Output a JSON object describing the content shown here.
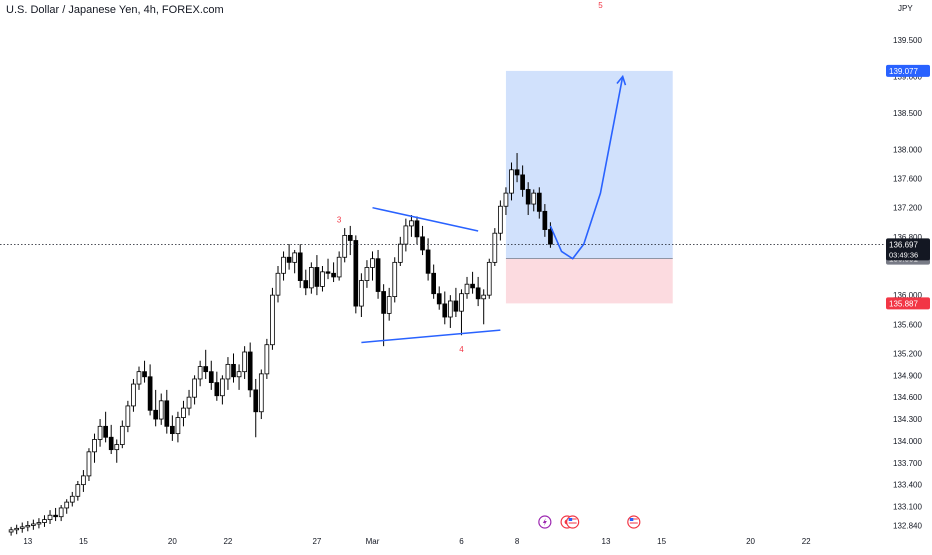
{
  "header": {
    "title": "U.S. Dollar / Japanese Yen, 4h, FOREX.com"
  },
  "currency": "JPY",
  "colors": {
    "up_candle": "#ffffff",
    "down_candle": "#000000",
    "candle_outline": "#000000",
    "target_zone": "#c9dcfb",
    "stop_zone": "#fbd5da",
    "drawing_blue": "#2962ff",
    "wave_label_red": "#f23645",
    "price_tag_dark": "#131722",
    "price_tag_blue": "#2962ff",
    "price_tag_red": "#f23645",
    "price_tag_gray": "#787b86"
  },
  "chart_data": {
    "type": "candlestick",
    "title": "U.S. Dollar / Japanese Yen, 4h, FOREX.com",
    "symbol": "USDJPY",
    "timeframe": "4h",
    "source": "FOREX.com",
    "ylim": [
      132.75,
      140.05
    ],
    "xlim": [
      -2,
      157
    ],
    "x_ticks": [
      {
        "label": "13",
        "bar": 3
      },
      {
        "label": "15",
        "bar": 13
      },
      {
        "label": "20",
        "bar": 29
      },
      {
        "label": "22",
        "bar": 39
      },
      {
        "label": "27",
        "bar": 55
      },
      {
        "label": "Mar",
        "bar": 65
      },
      {
        "label": "6",
        "bar": 81
      },
      {
        "label": "8",
        "bar": 91
      },
      {
        "label": "13",
        "bar": 107
      },
      {
        "label": "15",
        "bar": 117
      },
      {
        "label": "20",
        "bar": 133
      },
      {
        "label": "22",
        "bar": 143
      }
    ],
    "y_ticks": [
      "139.500",
      "139.000",
      "138.500",
      "138.000",
      "137.600",
      "137.200",
      "136.800",
      "136.000",
      "135.600",
      "135.200",
      "134.900",
      "134.600",
      "134.300",
      "134.000",
      "133.700",
      "133.400",
      "133.100",
      "132.840"
    ],
    "candles": [
      [
        0,
        132.75,
        132.82,
        132.7,
        132.78
      ],
      [
        1,
        132.78,
        132.85,
        132.72,
        132.8
      ],
      [
        2,
        132.8,
        132.88,
        132.74,
        132.82
      ],
      [
        3,
        132.82,
        132.9,
        132.76,
        132.84
      ],
      [
        4,
        132.84,
        132.92,
        132.78,
        132.86
      ],
      [
        5,
        132.86,
        132.94,
        132.8,
        132.88
      ],
      [
        6,
        132.88,
        132.98,
        132.82,
        132.92
      ],
      [
        7,
        132.92,
        133.05,
        132.86,
        132.98
      ],
      [
        8,
        132.98,
        133.08,
        132.9,
        132.96
      ],
      [
        9,
        132.96,
        133.12,
        132.9,
        133.08
      ],
      [
        10,
        133.08,
        133.2,
        133.0,
        133.16
      ],
      [
        11,
        133.16,
        133.3,
        133.1,
        133.24
      ],
      [
        12,
        133.24,
        133.45,
        133.18,
        133.4
      ],
      [
        13,
        133.4,
        133.6,
        133.3,
        133.52
      ],
      [
        14,
        133.52,
        133.9,
        133.45,
        133.85
      ],
      [
        15,
        133.85,
        134.1,
        133.7,
        134.02
      ],
      [
        16,
        134.02,
        134.3,
        133.92,
        134.2
      ],
      [
        17,
        134.2,
        134.4,
        133.98,
        134.05
      ],
      [
        18,
        134.05,
        134.22,
        133.82,
        133.88
      ],
      [
        19,
        133.88,
        134.02,
        133.7,
        133.95
      ],
      [
        20,
        133.95,
        134.28,
        133.9,
        134.2
      ],
      [
        21,
        134.2,
        134.55,
        134.12,
        134.48
      ],
      [
        22,
        134.48,
        134.85,
        134.4,
        134.78
      ],
      [
        23,
        134.78,
        135.02,
        134.7,
        134.95
      ],
      [
        24,
        134.95,
        135.1,
        134.8,
        134.88
      ],
      [
        25,
        134.88,
        135.05,
        134.35,
        134.42
      ],
      [
        26,
        134.42,
        134.7,
        134.2,
        134.3
      ],
      [
        27,
        134.3,
        134.65,
        134.22,
        134.55
      ],
      [
        28,
        134.55,
        134.7,
        134.1,
        134.2
      ],
      [
        29,
        134.2,
        134.35,
        134.0,
        134.1
      ],
      [
        30,
        134.1,
        134.4,
        133.98,
        134.32
      ],
      [
        31,
        134.32,
        134.55,
        134.2,
        134.45
      ],
      [
        32,
        134.45,
        134.7,
        134.35,
        134.6
      ],
      [
        33,
        134.6,
        134.9,
        134.5,
        134.85
      ],
      [
        34,
        134.85,
        135.1,
        134.75,
        135.02
      ],
      [
        35,
        135.02,
        135.25,
        134.85,
        134.95
      ],
      [
        36,
        134.95,
        135.1,
        134.7,
        134.8
      ],
      [
        37,
        134.8,
        134.95,
        134.55,
        134.62
      ],
      [
        38,
        134.62,
        134.9,
        134.5,
        134.85
      ],
      [
        39,
        134.85,
        135.15,
        134.7,
        135.05
      ],
      [
        40,
        135.05,
        135.2,
        134.8,
        134.88
      ],
      [
        41,
        134.88,
        135.05,
        134.7,
        134.95
      ],
      [
        42,
        134.95,
        135.3,
        134.85,
        135.22
      ],
      [
        43,
        135.22,
        135.35,
        134.6,
        134.7
      ],
      [
        44,
        134.7,
        134.85,
        134.05,
        134.4
      ],
      [
        45,
        134.4,
        134.98,
        134.3,
        134.92
      ],
      [
        46,
        134.92,
        135.4,
        134.85,
        135.32
      ],
      [
        47,
        135.32,
        136.1,
        135.25,
        136.0
      ],
      [
        48,
        136.0,
        136.4,
        135.9,
        136.3
      ],
      [
        49,
        136.3,
        136.6,
        136.2,
        136.52
      ],
      [
        50,
        136.52,
        136.7,
        136.35,
        136.45
      ],
      [
        51,
        136.45,
        136.62,
        136.3,
        136.58
      ],
      [
        52,
        136.58,
        136.7,
        136.1,
        136.2
      ],
      [
        53,
        136.2,
        136.35,
        136.0,
        136.1
      ],
      [
        54,
        136.1,
        136.45,
        136.02,
        136.38
      ],
      [
        55,
        136.38,
        136.55,
        136.0,
        136.12
      ],
      [
        56,
        136.12,
        136.4,
        136.05,
        136.32
      ],
      [
        57,
        136.32,
        136.5,
        136.22,
        136.3
      ],
      [
        58,
        136.3,
        136.45,
        136.18,
        136.25
      ],
      [
        59,
        136.25,
        136.6,
        136.2,
        136.52
      ],
      [
        60,
        136.52,
        136.92,
        136.45,
        136.82
      ],
      [
        61,
        136.82,
        136.95,
        136.55,
        136.75
      ],
      [
        62,
        136.75,
        136.82,
        135.75,
        135.85
      ],
      [
        63,
        135.85,
        136.3,
        135.7,
        136.2
      ],
      [
        64,
        136.2,
        136.48,
        136.1,
        136.38
      ],
      [
        65,
        136.38,
        136.6,
        136.2,
        136.5
      ],
      [
        66,
        136.5,
        136.62,
        135.95,
        136.05
      ],
      [
        67,
        136.05,
        136.15,
        135.3,
        135.75
      ],
      [
        68,
        135.75,
        136.1,
        135.65,
        135.98
      ],
      [
        69,
        135.98,
        136.52,
        135.9,
        136.45
      ],
      [
        70,
        136.45,
        136.8,
        136.4,
        136.7
      ],
      [
        71,
        136.7,
        137.05,
        136.6,
        136.95
      ],
      [
        72,
        136.95,
        137.1,
        136.8,
        137.02
      ],
      [
        73,
        137.02,
        137.08,
        136.7,
        136.8
      ],
      [
        74,
        136.8,
        136.95,
        136.55,
        136.62
      ],
      [
        75,
        136.62,
        136.78,
        136.2,
        136.3
      ],
      [
        76,
        136.3,
        136.42,
        135.95,
        136.02
      ],
      [
        77,
        136.02,
        136.12,
        135.8,
        135.88
      ],
      [
        78,
        135.88,
        136.05,
        135.6,
        135.7
      ],
      [
        79,
        135.7,
        136.0,
        135.55,
        135.92
      ],
      [
        80,
        135.92,
        136.1,
        135.7,
        135.78
      ],
      [
        81,
        135.78,
        136.08,
        135.45,
        136.02
      ],
      [
        82,
        136.02,
        136.25,
        135.95,
        136.15
      ],
      [
        83,
        136.15,
        136.32,
        136.02,
        136.1
      ],
      [
        84,
        136.1,
        136.25,
        135.85,
        135.95
      ],
      [
        85,
        135.95,
        136.08,
        135.6,
        136.0
      ],
      [
        86,
        136.0,
        136.5,
        135.95,
        136.45
      ],
      [
        87,
        136.45,
        136.92,
        136.4,
        136.85
      ],
      [
        88,
        136.85,
        137.3,
        136.75,
        137.22
      ],
      [
        89,
        137.22,
        137.48,
        137.1,
        137.4
      ],
      [
        90,
        137.4,
        137.82,
        137.3,
        137.72
      ],
      [
        91,
        137.72,
        137.95,
        137.55,
        137.65
      ],
      [
        92,
        137.65,
        137.78,
        137.35,
        137.45
      ],
      [
        93,
        137.45,
        137.55,
        137.1,
        137.25
      ],
      [
        94,
        137.25,
        137.45,
        137.15,
        137.4
      ],
      [
        95,
        137.4,
        137.48,
        137.05,
        137.15
      ],
      [
        96,
        137.15,
        137.25,
        136.8,
        136.9
      ],
      [
        97,
        136.9,
        137.0,
        136.65,
        136.7
      ]
    ],
    "current_price": 136.697,
    "countdown": "03:49:36",
    "position": {
      "entry": 136.501,
      "target": 139.077,
      "stop": 135.887,
      "start_bar": 89,
      "end_bar": 119
    },
    "wave_labels": [
      {
        "label": "3",
        "bar": 59,
        "price": 137.0
      },
      {
        "label": "4",
        "bar": 81,
        "price": 135.22
      },
      {
        "label": "5",
        "bar": 106,
        "price": 140.05
      }
    ],
    "trendlines": [
      {
        "from": [
          65,
          137.2
        ],
        "to": [
          84,
          136.88
        ]
      },
      {
        "from": [
          63,
          135.35
        ],
        "to": [
          88,
          135.52
        ]
      }
    ],
    "projection_path": [
      [
        97,
        136.95
      ],
      [
        99,
        136.6
      ],
      [
        101,
        136.5
      ],
      [
        103,
        136.7
      ],
      [
        106,
        137.4
      ],
      [
        108,
        138.2
      ],
      [
        110,
        139.0
      ]
    ],
    "event_markers": [
      {
        "icon": "lightning-icon",
        "bar": 96
      },
      {
        "icon": "event-dot-icon",
        "bar": 100
      },
      {
        "icon": "us-flag-icon",
        "bar": 101
      },
      {
        "icon": "us-flag-icon",
        "bar": 112
      }
    ]
  },
  "price_tags": {
    "target": "139.077",
    "current": "136.697",
    "countdown": "03:49:36",
    "entry": "136.501",
    "stop": "135.887"
  }
}
